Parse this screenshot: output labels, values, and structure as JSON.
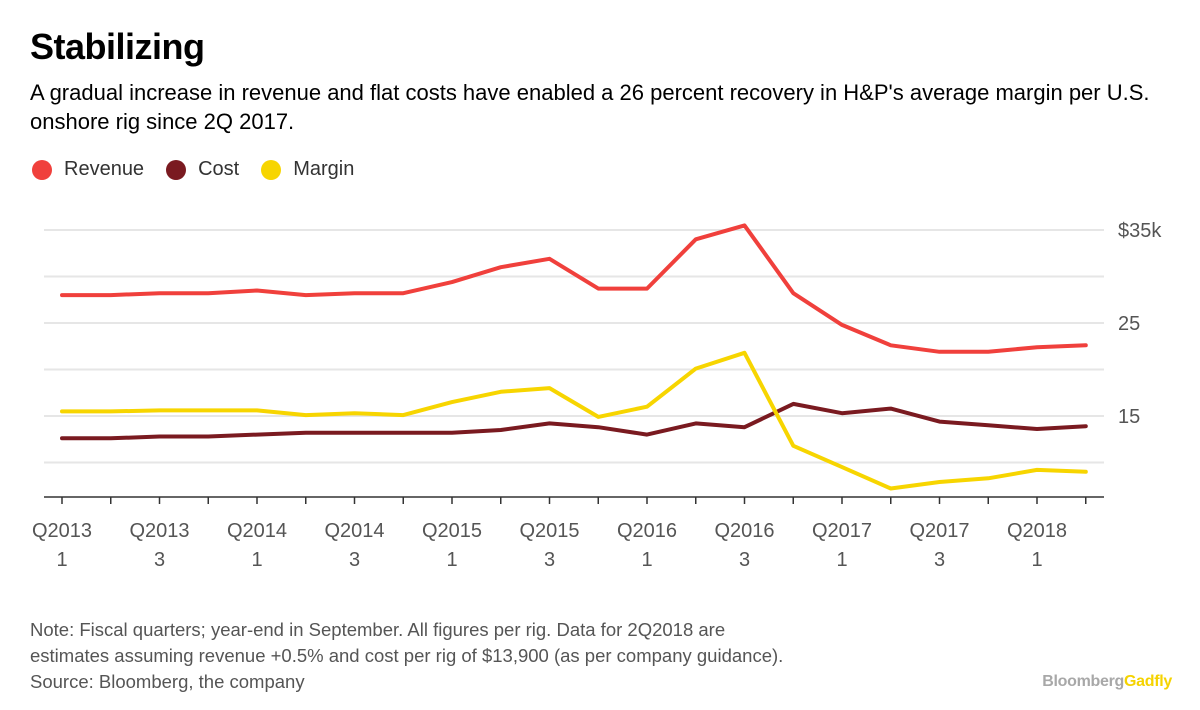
{
  "title": "Stabilizing",
  "subtitle": "A gradual increase in revenue and flat costs have enabled a 26 percent recovery in H&P's average margin per U.S. onshore rig since 2Q 2017.",
  "legend": [
    {
      "label": "Revenue",
      "color": "#f0403c"
    },
    {
      "label": "Cost",
      "color": "#7a1a20"
    },
    {
      "label": "Margin",
      "color": "#f7d500"
    }
  ],
  "note": {
    "line1": "Note: Fiscal quarters; year-end in September. All figures per rig. Data for 2Q2018 are",
    "line2": "estimates assuming revenue +0.5% and cost per rig of $13,900 (as per company guidance).",
    "line3": "Source: Bloomberg, the company"
  },
  "brand": {
    "part1": "Bloomberg",
    "part2": "Gadfly",
    "part1_color": "#a8a8a8",
    "part2_color": "#f5d300"
  },
  "chart_data": {
    "type": "line",
    "title": "Stabilizing",
    "xlabel": "",
    "ylabel": "",
    "ylim": [
      7,
      36
    ],
    "grid_values": [
      10,
      15,
      20,
      25,
      30,
      35
    ],
    "y_tick_labels": [
      {
        "value": 35,
        "label": "$35k"
      },
      {
        "value": 25,
        "label": "25"
      },
      {
        "value": 15,
        "label": "15"
      }
    ],
    "x_tick_labels": [
      {
        "index": 0,
        "top": "Q2013",
        "bottom": "1"
      },
      {
        "index": 2,
        "top": "Q2013",
        "bottom": "3"
      },
      {
        "index": 4,
        "top": "Q2014",
        "bottom": "1"
      },
      {
        "index": 6,
        "top": "Q2014",
        "bottom": "3"
      },
      {
        "index": 8,
        "top": "Q2015",
        "bottom": "1"
      },
      {
        "index": 10,
        "top": "Q2015",
        "bottom": "3"
      },
      {
        "index": 12,
        "top": "Q2016",
        "bottom": "1"
      },
      {
        "index": 14,
        "top": "Q2016",
        "bottom": "3"
      },
      {
        "index": 16,
        "top": "Q2017",
        "bottom": "1"
      },
      {
        "index": 18,
        "top": "Q2017",
        "bottom": "3"
      },
      {
        "index": 20,
        "top": "Q2018",
        "bottom": "1"
      }
    ],
    "num_points": 22,
    "series": [
      {
        "name": "Revenue",
        "color": "#f0403c",
        "values": [
          28.0,
          28.0,
          28.2,
          28.2,
          28.5,
          28.0,
          28.2,
          28.2,
          29.4,
          31.0,
          31.9,
          28.7,
          28.7,
          34.0,
          35.5,
          28.2,
          24.8,
          22.6,
          21.9,
          21.9,
          22.4,
          22.6
        ]
      },
      {
        "name": "Cost",
        "color": "#7a1a20",
        "values": [
          12.6,
          12.6,
          12.8,
          12.8,
          13.0,
          13.2,
          13.2,
          13.2,
          13.2,
          13.5,
          14.2,
          13.8,
          13.0,
          14.2,
          13.8,
          16.3,
          15.3,
          15.8,
          14.4,
          14.0,
          13.6,
          13.9
        ]
      },
      {
        "name": "Margin",
        "color": "#f7d500",
        "values": [
          15.5,
          15.5,
          15.6,
          15.6,
          15.6,
          15.1,
          15.3,
          15.1,
          16.5,
          17.6,
          18.0,
          14.9,
          16.0,
          20.1,
          21.8,
          11.8,
          9.5,
          7.2,
          7.9,
          8.3,
          9.2,
          9.0
        ]
      }
    ]
  }
}
